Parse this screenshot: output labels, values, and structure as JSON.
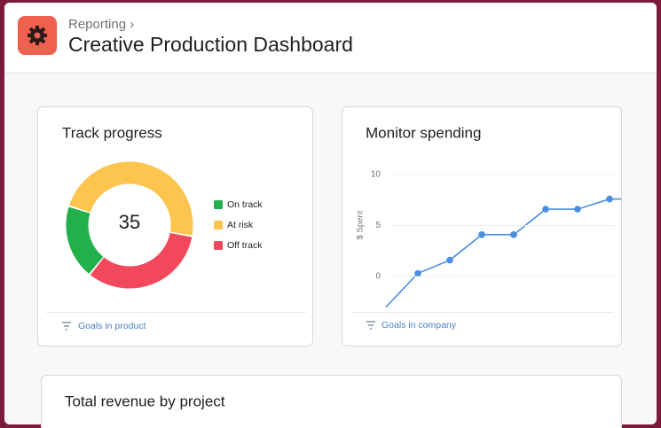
{
  "header": {
    "breadcrumb": "Reporting ›",
    "title": "Creative Production Dashboard"
  },
  "chart_data": [
    {
      "type": "pie",
      "title": "Track progress",
      "total": 35,
      "categories": [
        "On track",
        "At risk",
        "Off track"
      ],
      "values": [
        19,
        48,
        33
      ],
      "colors": [
        "#22b04b",
        "#fdc44e",
        "#f2485b"
      ],
      "filter": "Goals in product"
    },
    {
      "type": "line",
      "title": "Monitor spending",
      "y_label": "$ Spent",
      "categories": [
        null,
        null,
        null,
        null,
        null,
        null,
        null,
        null,
        null
      ],
      "values": [
        -3,
        0.3,
        1.6,
        4.1,
        4.1,
        6.6,
        6.6,
        7.6,
        7.6
      ],
      "color": "#4a8ee0",
      "ylim": [
        -3,
        10
      ],
      "yticks": [
        0,
        5,
        10
      ],
      "grid": true,
      "filter": "Goals in company"
    }
  ],
  "revenue_card": {
    "title": "Total revenue by project"
  }
}
